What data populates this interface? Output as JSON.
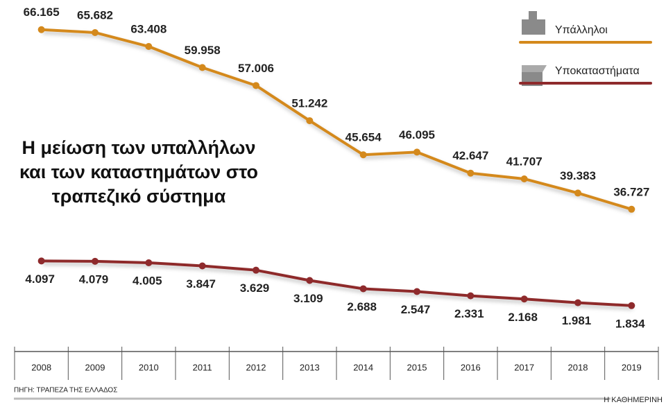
{
  "chart_data": {
    "type": "line",
    "title": "Η μείωση των υπαλλήλων και των καταστημάτων στο τραπεζικό σύστημα",
    "categories": [
      "2008",
      "2009",
      "2010",
      "2011",
      "2012",
      "2013",
      "2014",
      "2015",
      "2016",
      "2017",
      "2018",
      "2019"
    ],
    "series": [
      {
        "name": "Υπάλληλοι",
        "color": "#d4891c",
        "values": [
          66165,
          65682,
          63408,
          59958,
          57006,
          51242,
          45654,
          46095,
          42647,
          41707,
          39383,
          36727
        ],
        "value_labels": [
          "66.165",
          "65.682",
          "63.408",
          "59.958",
          "57.006",
          "51.242",
          "45.654",
          "46.095",
          "42.647",
          "41.707",
          "39.383",
          "36.727"
        ]
      },
      {
        "name": "Υποκαταστήματα",
        "color": "#8e2a2c",
        "axis": "y2",
        "values": [
          4097,
          4079,
          4005,
          3847,
          3629,
          3109,
          2688,
          2547,
          2331,
          2168,
          1981,
          1834
        ],
        "value_labels": [
          "4.097",
          "4.079",
          "4.005",
          "3.847",
          "3.629",
          "3.109",
          "2.688",
          "2.547",
          "2.331",
          "2.168",
          "1.981",
          "1.834"
        ]
      }
    ],
    "ylim": [
      15000,
      70000
    ],
    "y2lim": [
      0,
      17000
    ],
    "source": "ΠΗΓΗ: ΤΡΑΠΕΖΑ ΤΗΣ ΕΛΛΑΔΟΣ",
    "publisher": "Η ΚΑΘΗΜΕΡΙΝΗ"
  }
}
